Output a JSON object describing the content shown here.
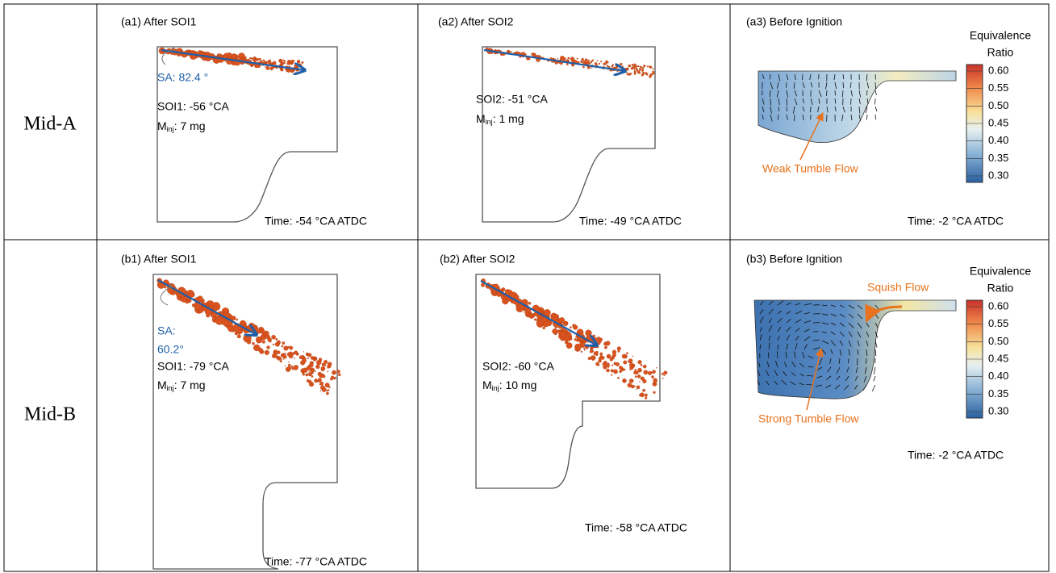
{
  "rows": [
    {
      "label": "Mid-A",
      "panels": [
        {
          "title": "(a1) After SOI1",
          "angle_lines": [
            "SA: 82.4 °"
          ],
          "soi": "SOI1: -56 °CA",
          "mass": {
            "symbol": "M",
            "subscript": "inj",
            "text": ": 7 mg"
          },
          "time": "Time: -54 °CA ATDC"
        },
        {
          "title": "(a2) After SOI2",
          "soi": "SOI2: -51 °CA",
          "mass": {
            "symbol": "M",
            "subscript": "inj",
            "text": ": 1 mg"
          },
          "time": "Time: -49 °CA ATDC"
        },
        {
          "title": "(a3) Before Ignition",
          "colorbar": {
            "title_lines": [
              "Equivalence",
              "Ratio"
            ],
            "ticks": [
              "0.60",
              "0.55",
              "0.50",
              "0.45",
              "0.40",
              "0.35",
              "0.30"
            ]
          },
          "flow_labels": [
            "Weak Tumble Flow"
          ],
          "time": "Time: -2 °CA ATDC"
        }
      ]
    },
    {
      "label": "Mid-B",
      "panels": [
        {
          "title": "(b1) After SOI1",
          "angle_lines": [
            "SA:",
            "60.2°"
          ],
          "soi": "SOI1: -79 °CA",
          "mass": {
            "symbol": "M",
            "subscript": "inj",
            "text": ": 7 mg"
          },
          "time": "Time: -77 °CA ATDC"
        },
        {
          "title": "(b2) After SOI2",
          "soi": "SOI2: -60 °CA",
          "mass": {
            "symbol": "M",
            "subscript": "inj",
            "text": ": 10 mg"
          },
          "time": "Time: -58 °CA ATDC"
        },
        {
          "title": "(b3) Before Ignition",
          "colorbar": {
            "title_lines": [
              "Equivalence",
              "Ratio"
            ],
            "ticks": [
              "0.60",
              "0.55",
              "0.50",
              "0.45",
              "0.40",
              "0.35",
              "0.30"
            ]
          },
          "flow_labels": [
            "Squish Flow",
            "Strong Tumble Flow"
          ],
          "time": "Time: -2 °CA ATDC"
        }
      ]
    }
  ]
}
